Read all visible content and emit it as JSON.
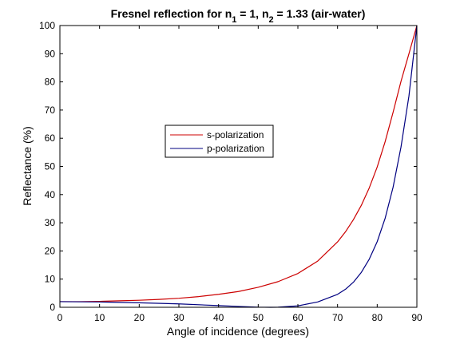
{
  "chart_data": {
    "type": "line",
    "title_parts": [
      "Fresnel reflection for n",
      "1",
      " = 1, n",
      "2",
      " = 1.33 (air-water)"
    ],
    "xlabel": "Angle of incidence (degrees)",
    "ylabel": "Reflectance (%)",
    "xlim": [
      0,
      90
    ],
    "ylim": [
      0,
      100
    ],
    "xticks": [
      0,
      10,
      20,
      30,
      40,
      50,
      60,
      70,
      80,
      90
    ],
    "yticks": [
      0,
      10,
      20,
      30,
      40,
      50,
      60,
      70,
      80,
      90,
      100
    ],
    "grid": false,
    "legend_position": "center-left",
    "series": [
      {
        "name": "s-polarization",
        "color": "#cc0000",
        "x": [
          0,
          5,
          10,
          15,
          20,
          25,
          30,
          35,
          40,
          45,
          50,
          55,
          60,
          65,
          70,
          72,
          74,
          76,
          78,
          80,
          82,
          84,
          86,
          88,
          90
        ],
        "y": [
          2.0,
          2.0,
          2.1,
          2.3,
          2.5,
          2.8,
          3.2,
          3.8,
          4.6,
          5.6,
          7.1,
          9.1,
          12.0,
          16.4,
          23.2,
          26.8,
          31.1,
          36.2,
          42.4,
          49.8,
          58.8,
          69.2,
          80.2,
          90.0,
          100.0
        ]
      },
      {
        "name": "p-polarization",
        "color": "#000080",
        "x": [
          0,
          10,
          20,
          30,
          40,
          45,
          50,
          53.1,
          55,
          60,
          65,
          70,
          72,
          74,
          76,
          78,
          80,
          82,
          84,
          86,
          88,
          90
        ],
        "y": [
          2.0,
          1.9,
          1.6,
          1.2,
          0.6,
          0.3,
          0.05,
          0.0,
          0.03,
          0.5,
          1.9,
          4.6,
          6.4,
          8.9,
          12.4,
          17.1,
          23.3,
          31.6,
          42.6,
          56.9,
          75.0,
          100.0
        ]
      }
    ]
  }
}
